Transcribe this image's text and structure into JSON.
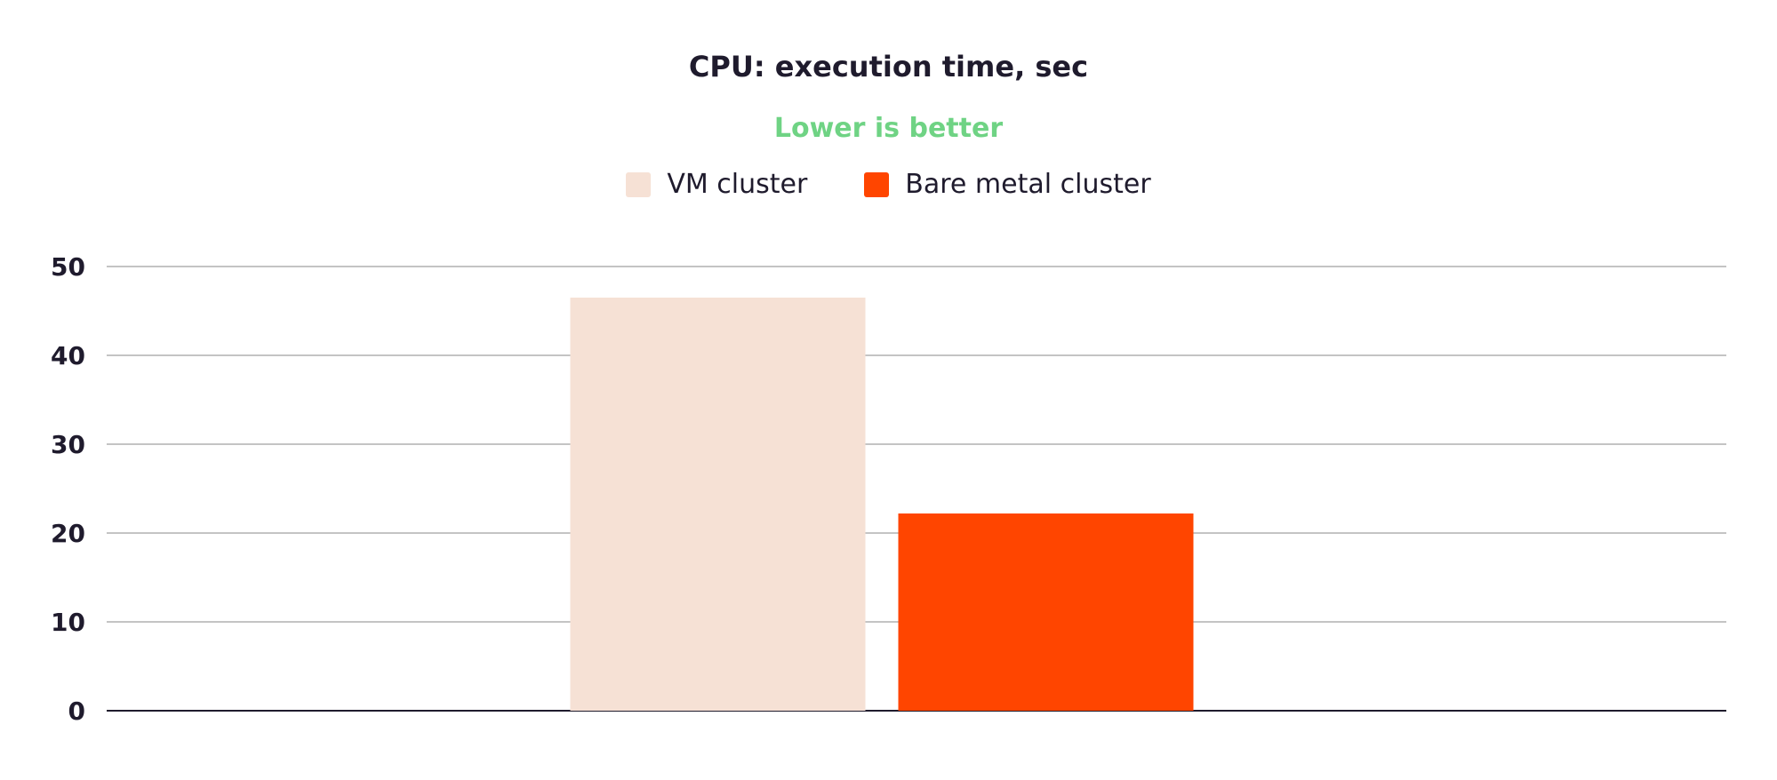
{
  "chart_data": {
    "type": "bar",
    "title": "CPU: execution time, sec",
    "subtitle": "Lower is better",
    "xlabel": "",
    "ylabel": "",
    "ylim": [
      0,
      50
    ],
    "yticks": [
      "0",
      "10",
      "20",
      "30",
      "40",
      "50"
    ],
    "grid": true,
    "legend_position": "top-center",
    "categories": [
      ""
    ],
    "series": [
      {
        "name": "VM cluster",
        "values": [
          46.5
        ],
        "color": "#f6e1d5"
      },
      {
        "name": "Bare metal cluster",
        "values": [
          22.2
        ],
        "color": "#ff4500"
      }
    ],
    "colors": {
      "title": "#1f1b2d",
      "subtitle": "#6fd384",
      "grid": "#c4c4c4",
      "axis": "#1f1b2d"
    }
  }
}
